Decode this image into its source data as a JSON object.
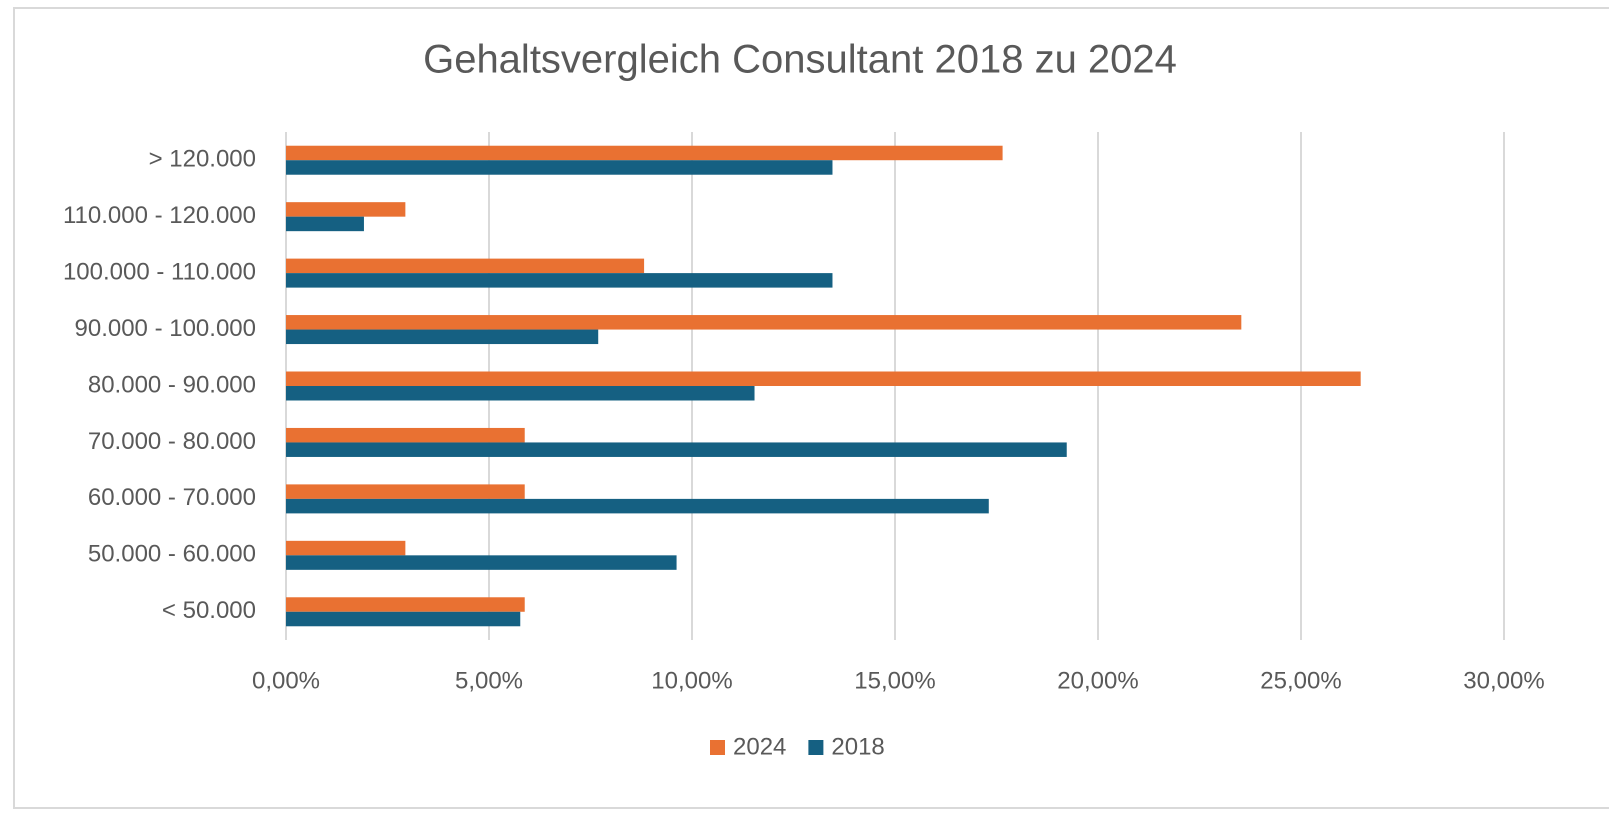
{
  "chart_data": {
    "type": "hbar",
    "title": "Gehaltsvergleich Consultant 2018 zu 2024",
    "categories": [
      "> 120.000",
      "110.000 - 120.000",
      "100.000 - 110.000",
      "90.000 - 100.000",
      "80.000 - 90.000",
      "70.000 - 80.000",
      "60.000 - 70.000",
      "50.000 - 60.000",
      "< 50.000"
    ],
    "series": [
      {
        "name": "2024",
        "color": "#e97132",
        "values": [
          17.65,
          2.94,
          8.82,
          23.53,
          26.47,
          5.88,
          5.88,
          2.94,
          5.88
        ]
      },
      {
        "name": "2018",
        "color": "#156082",
        "values": [
          13.46,
          1.92,
          13.46,
          7.69,
          11.54,
          19.23,
          17.31,
          9.62,
          5.77
        ]
      }
    ],
    "xlim": [
      0,
      30
    ],
    "xticks": [
      {
        "value": 0,
        "label": "0,00%"
      },
      {
        "value": 5,
        "label": "5,00%"
      },
      {
        "value": 10,
        "label": "10,00%"
      },
      {
        "value": 15,
        "label": "15,00%"
      },
      {
        "value": 20,
        "label": "20,00%"
      },
      {
        "value": 25,
        "label": "25,00%"
      },
      {
        "value": 30,
        "label": "30,00%"
      }
    ],
    "grid": true,
    "legend": "bottom"
  }
}
